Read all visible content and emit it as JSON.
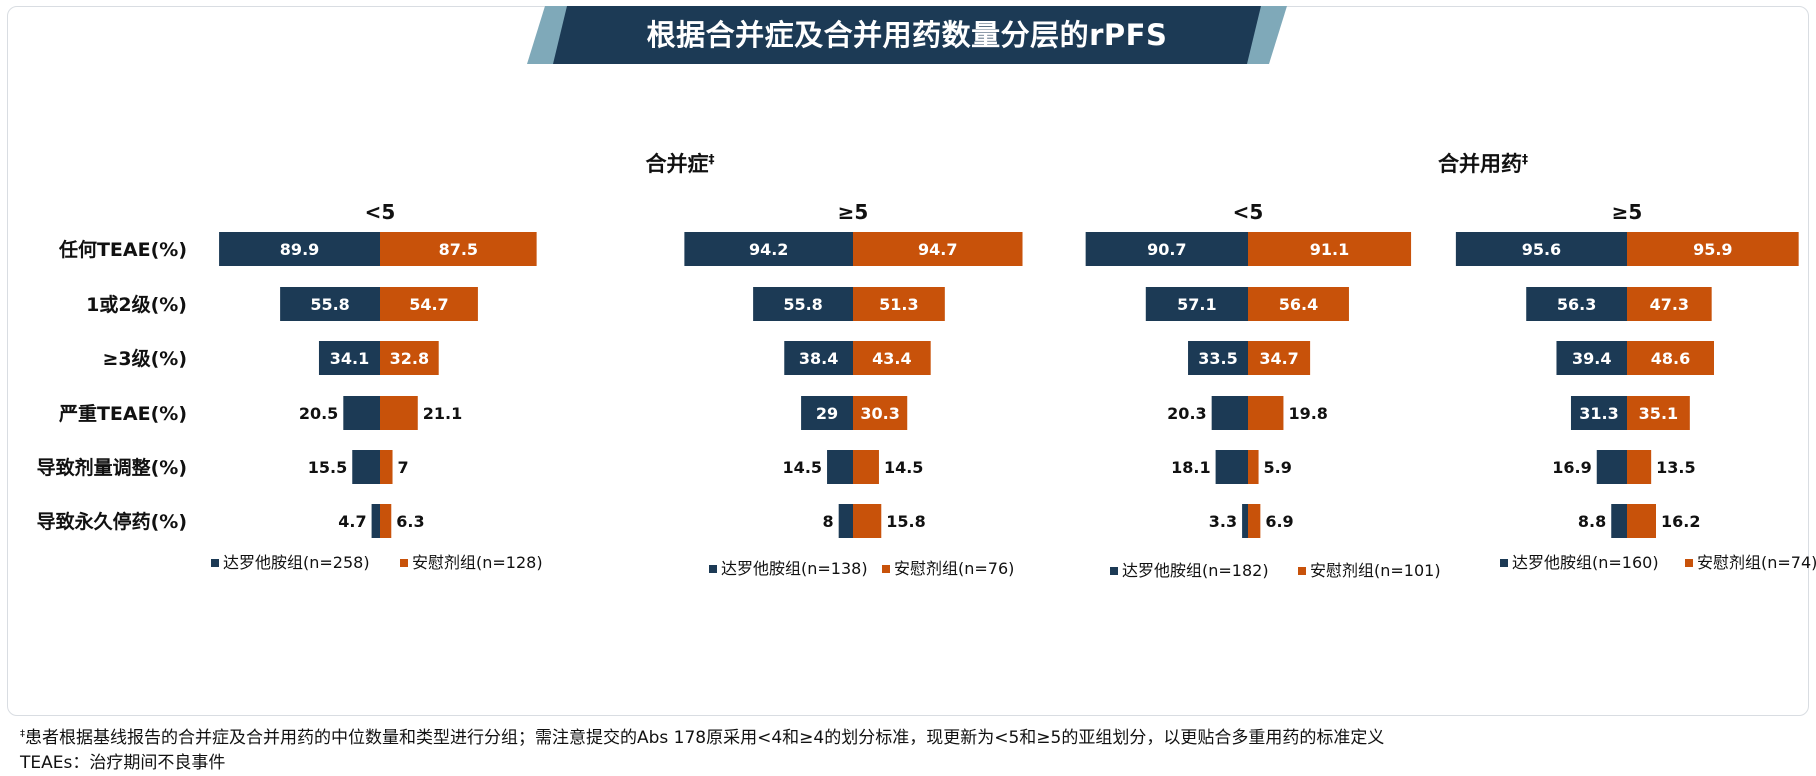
{
  "title": "根据合并症及合并用药数量分层的rPFS",
  "groups": [
    {
      "title": "合并症",
      "mark": "‡"
    },
    {
      "title": "合并用药",
      "mark": "‡"
    }
  ],
  "colors": {
    "dark": "#1c3a55",
    "orange": "#c8520a",
    "title_light": "#7fa9b9"
  },
  "chart_data": {
    "type": "bar",
    "orientation": "horizontal-diverging",
    "categories": [
      "任何TEAE(%)",
      "1或2级(%)",
      "≥3级(%)",
      "严重TEAE(%)",
      "导致剂量调整(%)",
      "导致永久停药(%)"
    ],
    "panels": [
      {
        "group": "合并症",
        "subtitle": "<5",
        "series": [
          {
            "name": "达罗他胺组(n=258)",
            "values": [
              89.9,
              55.8,
              34.1,
              20.5,
              15.5,
              4.7
            ]
          },
          {
            "name": "安慰剂组(n=128)",
            "values": [
              87.5,
              54.7,
              32.8,
              21.1,
              7,
              6.3
            ]
          }
        ]
      },
      {
        "group": "合并症",
        "subtitle": "≥5",
        "series": [
          {
            "name": "达罗他胺组(n=138)",
            "values": [
              94.2,
              55.8,
              38.4,
              29,
              14.5,
              8
            ]
          },
          {
            "name": "安慰剂组(n=76)",
            "values": [
              94.7,
              51.3,
              43.4,
              30.3,
              14.5,
              15.8
            ]
          }
        ]
      },
      {
        "group": "合并用药",
        "subtitle": "<5",
        "series": [
          {
            "name": "达罗他胺组(n=182)",
            "values": [
              90.7,
              57.1,
              33.5,
              20.3,
              18.1,
              3.3
            ]
          },
          {
            "name": "安慰剂组(n=101)",
            "values": [
              91.1,
              56.4,
              34.7,
              19.8,
              5.9,
              6.9
            ]
          }
        ]
      },
      {
        "group": "合并用药",
        "subtitle": "≥5",
        "series": [
          {
            "name": "达罗他胺组(n=160)",
            "values": [
              95.6,
              56.3,
              39.4,
              31.3,
              16.9,
              8.8
            ]
          },
          {
            "name": "安慰剂组(n=74)",
            "values": [
              95.9,
              47.3,
              48.6,
              35.1,
              13.5,
              16.2
            ]
          }
        ]
      }
    ]
  },
  "footnotes": [
    {
      "mark": "‡",
      "text": "患者根据基线报告的合并症及合并用药的中位数量和类型进行分组；需注意提交的Abs 178原采用<4和≥4的划分标准，现更新为<5和≥5的亚组划分，以更贴合多重用药的标准定义"
    },
    {
      "mark": "",
      "text": "TEAEs：治疗期间不良事件"
    }
  ]
}
